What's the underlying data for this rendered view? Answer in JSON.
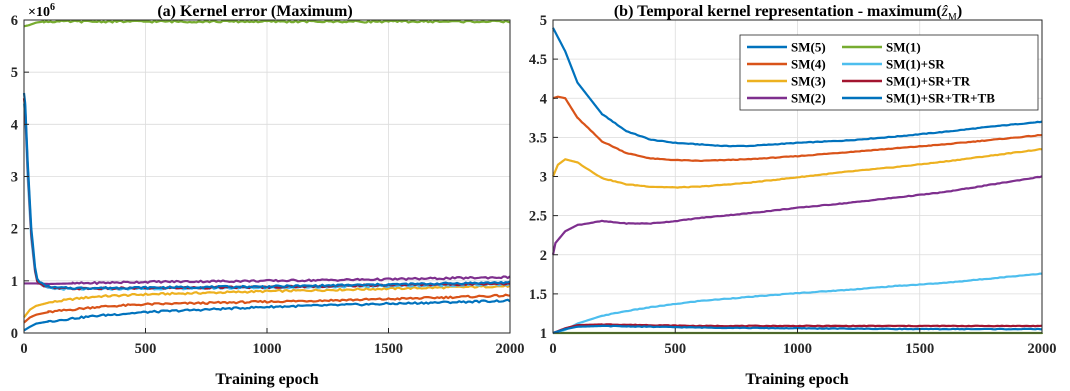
{
  "chart_data": [
    {
      "type": "line",
      "title": "(a) Kernel error (Maximum)",
      "xlabel": "Training epoch",
      "ylabel": "",
      "y_multiplier": "×10",
      "y_multiplier_exp": "6",
      "xlim": [
        0,
        2000
      ],
      "ylim": [
        0,
        6
      ],
      "xticks": [
        0,
        500,
        1000,
        1500,
        2000
      ],
      "yticks": [
        0,
        1,
        2,
        3,
        4,
        5,
        6
      ],
      "grid": true,
      "series": [
        {
          "color": "#EDB120",
          "x": [
            0,
            25,
            50,
            100,
            200,
            300,
            500,
            1000,
            1500,
            2000
          ],
          "y": [
            0.3,
            0.45,
            0.52,
            0.58,
            0.65,
            0.7,
            0.74,
            0.8,
            0.85,
            0.9
          ]
        },
        {
          "color": "#D95319",
          "x": [
            0,
            25,
            50,
            100,
            200,
            300,
            500,
            1000,
            1500,
            2000
          ],
          "y": [
            0.2,
            0.3,
            0.35,
            0.4,
            0.45,
            0.5,
            0.55,
            0.6,
            0.65,
            0.72
          ]
        },
        {
          "color": "#0072BD",
          "x": [
            0,
            25,
            50,
            100,
            200,
            300,
            500,
            1000,
            1500,
            2000
          ],
          "y": [
            0.05,
            0.12,
            0.18,
            0.22,
            0.28,
            0.33,
            0.4,
            0.5,
            0.56,
            0.62
          ]
        },
        {
          "color": "#7E2F8E",
          "x": [
            0,
            50,
            100,
            200,
            500,
            1000,
            1500,
            2000
          ],
          "y": [
            0.95,
            0.95,
            0.94,
            0.95,
            0.98,
            1.0,
            1.03,
            1.07
          ]
        },
        {
          "color": "#4DBEEE",
          "x": [
            0,
            5,
            15,
            30,
            50,
            80,
            120,
            200,
            500,
            1000,
            1500,
            2000
          ],
          "y": [
            4.4,
            4.2,
            3.0,
            1.8,
            1.0,
            0.88,
            0.85,
            0.84,
            0.85,
            0.87,
            0.9,
            0.93
          ]
        },
        {
          "color": "#A2142F",
          "x": [
            0,
            5,
            15,
            30,
            50,
            80,
            120,
            200,
            500,
            1000,
            1500,
            2000
          ],
          "y": [
            4.5,
            4.3,
            3.2,
            1.9,
            1.02,
            0.9,
            0.86,
            0.85,
            0.86,
            0.88,
            0.92,
            0.95
          ]
        },
        {
          "color": "#0072BD",
          "x": [
            0,
            5,
            15,
            30,
            50,
            80,
            120,
            200,
            500,
            1000,
            1500,
            2000
          ],
          "y": [
            4.6,
            4.4,
            3.3,
            2.0,
            1.05,
            0.92,
            0.87,
            0.86,
            0.87,
            0.89,
            0.93,
            0.97
          ]
        },
        {
          "color": "#77AC30",
          "x": [
            0,
            20,
            50,
            80,
            500,
            1000,
            1500,
            2000
          ],
          "y": [
            5.88,
            5.9,
            5.95,
            5.97,
            5.97,
            5.97,
            5.97,
            5.97
          ]
        }
      ]
    },
    {
      "type": "line",
      "title": "(b) Temporal kernel representation - maximum(",
      "title_math": "ẑ",
      "title_sub": "M",
      "title_end": ")",
      "xlabel": "Training epoch",
      "ylabel": "",
      "xlim": [
        0,
        2000
      ],
      "ylim": [
        1,
        5
      ],
      "xticks": [
        0,
        500,
        1000,
        1500,
        2000
      ],
      "yticks": [
        1,
        1.5,
        2,
        2.5,
        3,
        3.5,
        4,
        4.5,
        5
      ],
      "grid": true,
      "legend_position": "top-right",
      "series": [
        {
          "name": "SM(5)",
          "color": "#0072BD",
          "x": [
            0,
            50,
            100,
            200,
            300,
            400,
            500,
            600,
            700,
            800,
            1000,
            1200,
            1400,
            1600,
            1800,
            2000
          ],
          "y": [
            4.9,
            4.6,
            4.2,
            3.8,
            3.58,
            3.47,
            3.43,
            3.41,
            3.39,
            3.39,
            3.43,
            3.46,
            3.51,
            3.57,
            3.64,
            3.7
          ]
        },
        {
          "name": "SM(4)",
          "color": "#D95319",
          "x": [
            0,
            20,
            50,
            100,
            200,
            300,
            400,
            500,
            600,
            800,
            1000,
            1200,
            1400,
            1600,
            1800,
            2000
          ],
          "y": [
            4.0,
            4.02,
            4.0,
            3.75,
            3.45,
            3.3,
            3.23,
            3.21,
            3.2,
            3.22,
            3.26,
            3.31,
            3.36,
            3.41,
            3.47,
            3.53
          ]
        },
        {
          "name": "SM(3)",
          "color": "#EDB120",
          "x": [
            0,
            20,
            50,
            100,
            200,
            300,
            400,
            500,
            600,
            800,
            1000,
            1200,
            1400,
            1600,
            1800,
            2000
          ],
          "y": [
            3.0,
            3.15,
            3.22,
            3.18,
            2.98,
            2.9,
            2.87,
            2.86,
            2.87,
            2.92,
            2.99,
            3.06,
            3.12,
            3.19,
            3.27,
            3.35
          ]
        },
        {
          "name": "SM(2)",
          "color": "#7E2F8E",
          "x": [
            0,
            10,
            50,
            100,
            200,
            300,
            400,
            500,
            600,
            800,
            1000,
            1200,
            1400,
            1600,
            1800,
            2000
          ],
          "y": [
            2.0,
            2.15,
            2.3,
            2.38,
            2.43,
            2.4,
            2.4,
            2.43,
            2.47,
            2.53,
            2.6,
            2.66,
            2.73,
            2.8,
            2.9,
            3.0
          ]
        },
        {
          "name": "SM(1)",
          "color": "#77AC30",
          "x": [
            0,
            2000
          ],
          "y": [
            1.0,
            1.0
          ]
        },
        {
          "name": "SM(1)+SR",
          "color": "#4DBEEE",
          "x": [
            0,
            50,
            100,
            200,
            300,
            400,
            500,
            600,
            800,
            1000,
            1200,
            1400,
            1600,
            1800,
            2000
          ],
          "y": [
            1.0,
            1.04,
            1.12,
            1.22,
            1.28,
            1.33,
            1.37,
            1.41,
            1.46,
            1.51,
            1.55,
            1.6,
            1.64,
            1.7,
            1.76
          ]
        },
        {
          "name": "SM(1)+SR+TR",
          "color": "#A2142F",
          "x": [
            0,
            50,
            100,
            200,
            400,
            600,
            1000,
            1500,
            2000
          ],
          "y": [
            1.0,
            1.06,
            1.1,
            1.11,
            1.1,
            1.09,
            1.09,
            1.09,
            1.09
          ]
        },
        {
          "name": "SM(1)+SR+TR+TB",
          "color": "#0072BD",
          "x": [
            0,
            50,
            100,
            200,
            400,
            600,
            1000,
            1500,
            2000
          ],
          "y": [
            1.0,
            1.05,
            1.08,
            1.09,
            1.08,
            1.07,
            1.06,
            1.05,
            1.05
          ]
        }
      ]
    }
  ]
}
